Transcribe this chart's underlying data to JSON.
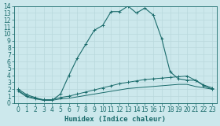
{
  "xlabel": "Humidex (Indice chaleur)",
  "xlim": [
    -0.5,
    23.5
  ],
  "ylim": [
    0,
    14
  ],
  "bg_color": "#cce8ec",
  "grid_color": "#b8d8dc",
  "line_color": "#1a6b6b",
  "line1_x": [
    0,
    1,
    2,
    3,
    4,
    5,
    6,
    7,
    8,
    9,
    10,
    11,
    12,
    13,
    14,
    15,
    16,
    17,
    18,
    19,
    20,
    21,
    22,
    23
  ],
  "line1_y": [
    2.0,
    1.2,
    0.8,
    0.4,
    0.4,
    1.3,
    4.0,
    6.5,
    8.5,
    10.5,
    11.2,
    13.2,
    13.2,
    14.0,
    13.0,
    13.7,
    12.7,
    9.3,
    4.5,
    3.5,
    3.3,
    3.3,
    2.5,
    2.0
  ],
  "line2_x": [
    0,
    1,
    2,
    3,
    4,
    5,
    6,
    7,
    8,
    9,
    10,
    11,
    12,
    13,
    14,
    15,
    16,
    17,
    18,
    19,
    20,
    21,
    22,
    23
  ],
  "line2_y": [
    1.8,
    1.0,
    0.7,
    0.5,
    0.5,
    0.8,
    1.0,
    1.3,
    1.6,
    1.9,
    2.2,
    2.5,
    2.8,
    3.0,
    3.2,
    3.4,
    3.5,
    3.6,
    3.7,
    3.8,
    3.9,
    3.3,
    2.6,
    2.2
  ],
  "line3_x": [
    0,
    1,
    2,
    3,
    4,
    5,
    6,
    7,
    8,
    9,
    10,
    11,
    12,
    13,
    14,
    15,
    16,
    17,
    18,
    19,
    20,
    21,
    22,
    23
  ],
  "line3_y": [
    1.7,
    0.9,
    0.6,
    0.4,
    0.4,
    0.6,
    0.7,
    0.9,
    1.1,
    1.3,
    1.5,
    1.7,
    1.9,
    2.1,
    2.2,
    2.3,
    2.4,
    2.5,
    2.6,
    2.7,
    2.7,
    2.4,
    2.2,
    2.0
  ],
  "tick_fontsize": 5.5,
  "label_fontsize": 6.5,
  "marker_size": 2.5
}
